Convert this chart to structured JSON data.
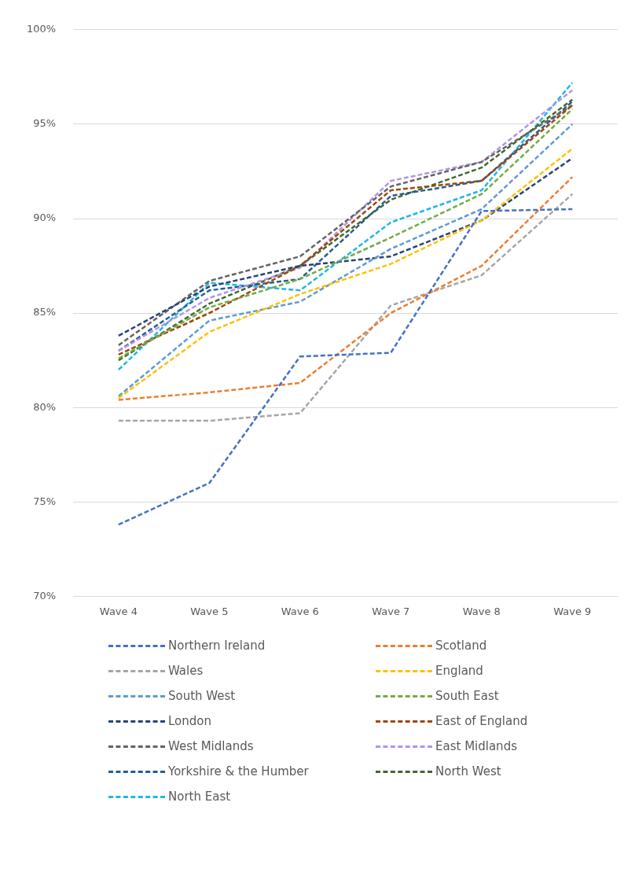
{
  "chart_data": {
    "type": "line",
    "categories": [
      "Wave 4",
      "Wave 5",
      "Wave 6",
      "Wave 7",
      "Wave 8",
      "Wave 9"
    ],
    "series": [
      {
        "name": "Northern Ireland",
        "color": "#4472c4",
        "values": [
          73.8,
          76.0,
          82.7,
          82.9,
          90.4,
          90.5
        ]
      },
      {
        "name": "Scotland",
        "color": "#ed7d31",
        "values": [
          80.4,
          80.8,
          81.3,
          85.0,
          87.5,
          92.2
        ]
      },
      {
        "name": "Wales",
        "color": "#a5a5a5",
        "values": [
          79.3,
          79.3,
          79.7,
          85.4,
          87.0,
          91.3
        ]
      },
      {
        "name": "England",
        "color": "#ffc000",
        "values": [
          80.5,
          84.0,
          86.0,
          87.6,
          89.9,
          93.7
        ]
      },
      {
        "name": "South West",
        "color": "#5b9bd5",
        "values": [
          80.6,
          84.6,
          85.6,
          88.4,
          90.5,
          95.0
        ]
      },
      {
        "name": "South East",
        "color": "#70ad47",
        "values": [
          82.6,
          85.3,
          86.8,
          89.0,
          91.3,
          95.8
        ]
      },
      {
        "name": "London",
        "color": "#264478",
        "values": [
          83.8,
          86.4,
          87.5,
          88.0,
          89.9,
          93.2
        ]
      },
      {
        "name": "East of England",
        "color": "#9e480e",
        "values": [
          82.8,
          85.0,
          87.5,
          91.5,
          92.0,
          96.0
        ]
      },
      {
        "name": "West Midlands",
        "color": "#636363",
        "values": [
          83.3,
          86.7,
          88.0,
          91.7,
          93.0,
          96.0
        ]
      },
      {
        "name": "East Midlands",
        "color": "#b294e6",
        "values": [
          83.0,
          85.8,
          87.4,
          92.0,
          93.0,
          96.8
        ]
      },
      {
        "name": "Yorkshire & the Humber",
        "color": "#255e91",
        "values": [
          83.0,
          86.2,
          86.8,
          91.2,
          92.0,
          96.2
        ]
      },
      {
        "name": "North West",
        "color": "#43682b",
        "values": [
          82.5,
          85.5,
          87.5,
          91.0,
          92.7,
          96.3
        ]
      },
      {
        "name": "North East",
        "color": "#21b6e6",
        "values": [
          82.0,
          86.6,
          86.2,
          89.8,
          91.5,
          97.2
        ]
      }
    ],
    "ylim": [
      70,
      100
    ],
    "yticks": [
      {
        "value": 70,
        "label": "70%"
      },
      {
        "value": 75,
        "label": "75%"
      },
      {
        "value": 80,
        "label": "80%"
      },
      {
        "value": 85,
        "label": "85%"
      },
      {
        "value": 90,
        "label": "90%"
      },
      {
        "value": 95,
        "label": "95%"
      },
      {
        "value": 100,
        "label": "100%"
      }
    ],
    "grid": "y",
    "legend": "bottom",
    "line_style": "dashed",
    "marker": "none"
  }
}
